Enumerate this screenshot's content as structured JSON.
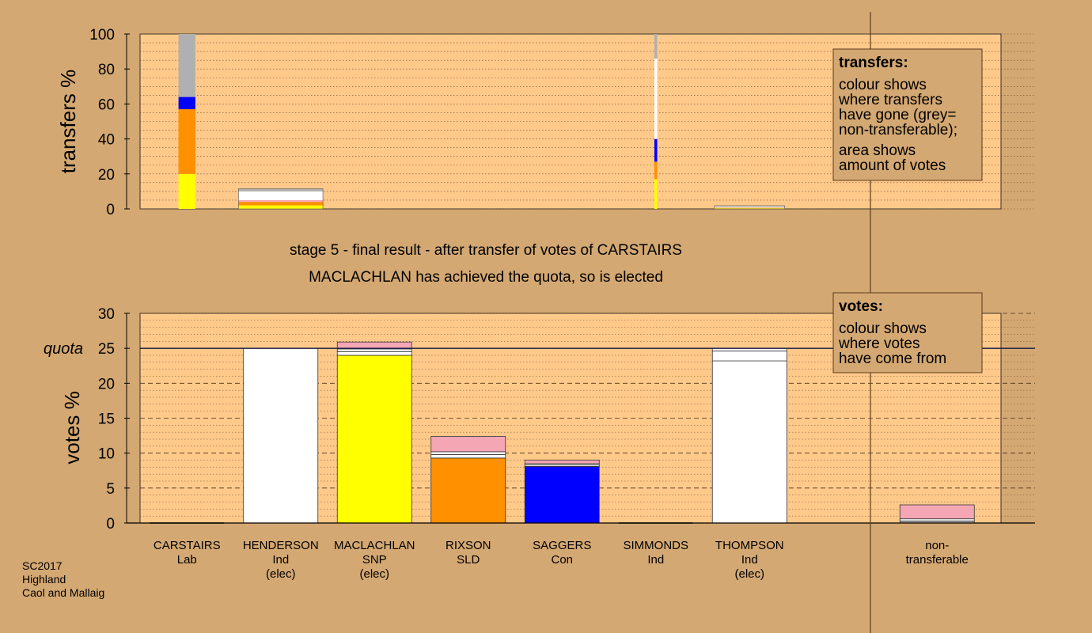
{
  "stage_title": "stage 5 - final result - after transfer of votes of CARSTAIRS",
  "stage_subtitle": "MACLACHLAN has achieved the quota, so is elected",
  "footer": [
    "SC2017",
    "Highland",
    "Caol and Mallaig"
  ],
  "legend_transfers": {
    "title": "transfers:",
    "lines": [
      "colour shows",
      "where transfers",
      "have gone (grey=",
      "non-transferable);",
      "area shows",
      "amount of votes"
    ]
  },
  "legend_votes": {
    "title": "votes:",
    "lines": [
      "colour shows",
      "where votes",
      "have come from"
    ]
  },
  "colors": {
    "background": "#d4a872",
    "plot_bg": "#ffc98a",
    "Lab": "#f4a6b5",
    "Ind": "#ffffff",
    "SNP": "#ffff00",
    "SLD": "#ff9000",
    "Con": "#0000ff",
    "nontransferable": "#b0b0b0"
  },
  "chart_data": [
    {
      "type": "bar",
      "stacked": true,
      "ylabel": "transfers %",
      "ylim": [
        0,
        100
      ],
      "yticks": [
        0,
        20,
        40,
        60,
        80,
        100
      ],
      "bars": [
        {
          "position": 0,
          "width_rel": 0.18,
          "segments": [
            {
              "party": "SNP",
              "value": 20
            },
            {
              "party": "SLD",
              "value": 37
            },
            {
              "party": "Con",
              "value": 7
            },
            {
              "party": "nontransferable",
              "value": 36
            }
          ]
        },
        {
          "position": 1,
          "width_rel": 0.9,
          "segments": [
            {
              "party": "SNP",
              "value": 2
            },
            {
              "party": "SLD",
              "value": 2
            },
            {
              "party": "Lab",
              "value": 1
            },
            {
              "party": "Ind",
              "value": 5
            },
            {
              "party": "nontransferable",
              "value": 1.5
            }
          ]
        },
        {
          "position": 5,
          "width_rel": 0.03,
          "segments": [
            {
              "party": "SNP",
              "value": 17
            },
            {
              "party": "SLD",
              "value": 10
            },
            {
              "party": "Con",
              "value": 13
            },
            {
              "party": "Ind",
              "value": 46
            },
            {
              "party": "nontransferable",
              "value": 14
            }
          ]
        },
        {
          "position": 6,
          "width_rel": 0.75,
          "segments": [
            {
              "party": "SNP",
              "value": 0.4
            },
            {
              "party": "SLD",
              "value": 0.3
            },
            {
              "party": "Ind",
              "value": 0.6
            },
            {
              "party": "nontransferable",
              "value": 0.5
            }
          ]
        }
      ]
    },
    {
      "type": "bar",
      "stacked": true,
      "ylabel": "votes %",
      "ylim": [
        0,
        30
      ],
      "yticks": [
        0,
        5,
        10,
        15,
        20,
        25,
        30
      ],
      "quota": {
        "label": "quota",
        "value": 25
      },
      "categories": [
        {
          "name": "CARSTAIRS",
          "party": "Lab",
          "note": ""
        },
        {
          "name": "HENDERSON",
          "party": "Ind",
          "note": "(elec)"
        },
        {
          "name": "MACLACHLAN",
          "party": "SNP",
          "note": "(elec)"
        },
        {
          "name": "RIXSON",
          "party": "SLD",
          "note": ""
        },
        {
          "name": "SAGGERS",
          "party": "Con",
          "note": ""
        },
        {
          "name": "SIMMONDS",
          "party": "Ind",
          "note": ""
        },
        {
          "name": "THOMPSON",
          "party": "Ind",
          "note": "(elec)"
        },
        {
          "name": "",
          "party": "",
          "note": ""
        },
        {
          "name": "non-",
          "party": "transferable",
          "note": ""
        }
      ],
      "bars": [
        {
          "position": 0,
          "segments": []
        },
        {
          "position": 1,
          "segments": [
            {
              "party": "Ind",
              "value": 25
            }
          ]
        },
        {
          "position": 2,
          "segments": [
            {
              "party": "SNP",
              "value": 24
            },
            {
              "party": "Ind",
              "value": 0.5
            },
            {
              "party": "Ind",
              "value": 0.4
            },
            {
              "party": "Lab",
              "value": 1
            }
          ]
        },
        {
          "position": 3,
          "segments": [
            {
              "party": "SLD",
              "value": 9.3
            },
            {
              "party": "Ind",
              "value": 0.5
            },
            {
              "party": "Ind",
              "value": 0.4
            },
            {
              "party": "Lab",
              "value": 2.2
            }
          ]
        },
        {
          "position": 4,
          "segments": [
            {
              "party": "Con",
              "value": 8.1
            },
            {
              "party": "Ind",
              "value": 0.2
            },
            {
              "party": "Ind",
              "value": 0.2
            },
            {
              "party": "Lab",
              "value": 0.5
            }
          ]
        },
        {
          "position": 5,
          "segments": []
        },
        {
          "position": 6,
          "segments": [
            {
              "party": "Ind",
              "value": 23.2
            },
            {
              "party": "Ind",
              "value": 1.4
            },
            {
              "party": "Ind",
              "value": 0.4
            }
          ]
        },
        {
          "position": 8,
          "segments": [
            {
              "party": "nontransferable",
              "value": 0.3
            },
            {
              "party": "Ind",
              "value": 0.3
            },
            {
              "party": "Lab",
              "value": 2
            }
          ]
        }
      ]
    }
  ]
}
